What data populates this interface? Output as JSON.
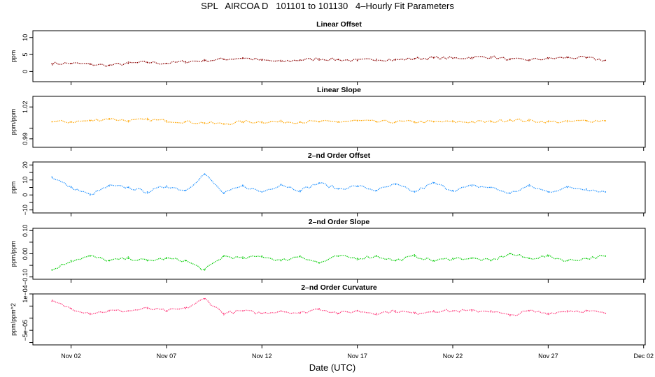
{
  "title": "SPL   AIRCOA D   101101 to 101130   4–Hourly Fit Parameters",
  "x_axis": {
    "label": "Date (UTC)",
    "range": [
      "2010-10-31T00:00",
      "2010-12-02T02:00"
    ],
    "ticks": [
      {
        "date": "2010-11-02",
        "label": "Nov 02"
      },
      {
        "date": "2010-11-07",
        "label": "Nov 07"
      },
      {
        "date": "2010-11-12",
        "label": "Nov 12"
      },
      {
        "date": "2010-11-17",
        "label": "Nov 17"
      },
      {
        "date": "2010-11-22",
        "label": "Nov 22"
      },
      {
        "date": "2010-11-27",
        "label": "Nov 27"
      },
      {
        "date": "2010-12-02",
        "label": "Dec 02"
      }
    ]
  },
  "chart_data": [
    {
      "type": "line",
      "line_style": "dotted",
      "title": "Linear Offset",
      "ylabel": "ppm",
      "color": "#8b0000",
      "ylim": [
        -3,
        12
      ],
      "yticks": [
        0,
        5,
        10
      ],
      "ytick_labels": [
        "0",
        "5",
        "10"
      ],
      "x": [
        "2010-11-01",
        "2010-11-02",
        "2010-11-03",
        "2010-11-04",
        "2010-11-05",
        "2010-11-06",
        "2010-11-07",
        "2010-11-08",
        "2010-11-09",
        "2010-11-10",
        "2010-11-11",
        "2010-11-12",
        "2010-11-13",
        "2010-11-14",
        "2010-11-15",
        "2010-11-16",
        "2010-11-17",
        "2010-11-18",
        "2010-11-19",
        "2010-11-20",
        "2010-11-21",
        "2010-11-22",
        "2010-11-23",
        "2010-11-24",
        "2010-11-25",
        "2010-11-26",
        "2010-11-27",
        "2010-11-28",
        "2010-11-29",
        "2010-11-30"
      ],
      "values": [
        2.3,
        2.4,
        2.1,
        1.8,
        2.4,
        2.7,
        2.4,
        2.9,
        3.2,
        3.6,
        4.0,
        3.3,
        2.9,
        3.4,
        3.7,
        3.5,
        3.2,
        3.6,
        3.4,
        3.8,
        4.0,
        3.9,
        4.1,
        4.3,
        3.5,
        3.4,
        3.8,
        4.1,
        4.0,
        3.3
      ]
    },
    {
      "type": "line",
      "line_style": "dotted",
      "title": "Linear Slope",
      "ylabel": "ppm/ppm",
      "color": "#ffa500",
      "ylim": [
        0.982,
        1.03
      ],
      "yticks": [
        0.99,
        1.0,
        1.02
      ],
      "ytick_labels": [
        "0.99",
        "",
        "1.02"
      ],
      "x": [
        "2010-11-01",
        "2010-11-02",
        "2010-11-03",
        "2010-11-04",
        "2010-11-05",
        "2010-11-06",
        "2010-11-07",
        "2010-11-08",
        "2010-11-09",
        "2010-11-10",
        "2010-11-11",
        "2010-11-12",
        "2010-11-13",
        "2010-11-14",
        "2010-11-15",
        "2010-11-16",
        "2010-11-17",
        "2010-11-18",
        "2010-11-19",
        "2010-11-20",
        "2010-11-21",
        "2010-11-22",
        "2010-11-23",
        "2010-11-24",
        "2010-11-25",
        "2010-11-26",
        "2010-11-27",
        "2010-11-28",
        "2010-11-29",
        "2010-11-30"
      ],
      "values": [
        1.006,
        1.006,
        1.007,
        1.009,
        1.007,
        1.008,
        1.007,
        1.006,
        1.005,
        1.004,
        1.006,
        1.006,
        1.006,
        1.006,
        1.006,
        1.006,
        1.007,
        1.006,
        1.006,
        1.006,
        1.006,
        1.006,
        1.006,
        1.006,
        1.008,
        1.007,
        1.006,
        1.006,
        1.007,
        1.007
      ]
    },
    {
      "type": "line",
      "line_style": "dotted",
      "title": "2–nd Order Offset",
      "ylabel": "ppm",
      "color": "#1e90ff",
      "ylim": [
        -12,
        22
      ],
      "yticks": [
        -10,
        -5,
        0,
        5,
        10,
        15,
        20
      ],
      "ytick_labels": [
        "−10",
        "",
        "0",
        "",
        "10",
        "",
        "20"
      ],
      "x": [
        "2010-11-01",
        "2010-11-02",
        "2010-11-03",
        "2010-11-04",
        "2010-11-05",
        "2010-11-06",
        "2010-11-07",
        "2010-11-08",
        "2010-11-09",
        "2010-11-10",
        "2010-11-11",
        "2010-11-12",
        "2010-11-13",
        "2010-11-14",
        "2010-11-15",
        "2010-11-16",
        "2010-11-17",
        "2010-11-18",
        "2010-11-19",
        "2010-11-20",
        "2010-11-21",
        "2010-11-22",
        "2010-11-23",
        "2010-11-24",
        "2010-11-25",
        "2010-11-26",
        "2010-11-27",
        "2010-11-28",
        "2010-11-29",
        "2010-11-30"
      ],
      "values": [
        12,
        5,
        0,
        6,
        5,
        2,
        6,
        3,
        14,
        1,
        6,
        2,
        7,
        3,
        8,
        4,
        6,
        3,
        7,
        2,
        8,
        3,
        6,
        5,
        1,
        6,
        2,
        5,
        4,
        2
      ]
    },
    {
      "type": "line",
      "line_style": "dotted",
      "title": "2–nd Order Slope",
      "ylabel": "ppm/ppm",
      "color": "#00cc00",
      "ylim": [
        -0.11,
        0.11
      ],
      "yticks": [
        -0.1,
        -0.05,
        0.0,
        0.05,
        0.1
      ],
      "ytick_labels": [
        "−0.10",
        "",
        "0.00",
        "",
        "0.10"
      ],
      "x": [
        "2010-11-01",
        "2010-11-02",
        "2010-11-03",
        "2010-11-04",
        "2010-11-05",
        "2010-11-06",
        "2010-11-07",
        "2010-11-08",
        "2010-11-09",
        "2010-11-10",
        "2010-11-11",
        "2010-11-12",
        "2010-11-13",
        "2010-11-14",
        "2010-11-15",
        "2010-11-16",
        "2010-11-17",
        "2010-11-18",
        "2010-11-19",
        "2010-11-20",
        "2010-11-21",
        "2010-11-22",
        "2010-11-23",
        "2010-11-24",
        "2010-11-25",
        "2010-11-26",
        "2010-11-27",
        "2010-11-28",
        "2010-11-29",
        "2010-11-30"
      ],
      "values": [
        -0.07,
        -0.03,
        -0.01,
        -0.03,
        -0.02,
        -0.03,
        -0.02,
        -0.03,
        -0.07,
        -0.01,
        -0.02,
        -0.01,
        -0.03,
        -0.01,
        -0.04,
        -0.01,
        -0.02,
        -0.01,
        -0.03,
        -0.01,
        -0.03,
        -0.02,
        -0.02,
        -0.03,
        0.0,
        -0.02,
        -0.01,
        -0.03,
        -0.02,
        -0.01
      ]
    },
    {
      "type": "line",
      "line_style": "dotted",
      "title": "2–nd Order Curvature",
      "ylabel": "ppm/ppm^2",
      "color": "#ff3377",
      "ylim": [
        -0.00011,
        0.0001
      ],
      "yticks": [
        -0.0001,
        -5e-05,
        0.0,
        5e-05,
        0.0001
      ],
      "ytick_labels": [
        "",
        "−5e−05",
        "",
        "",
        "1e−04"
      ],
      "x": [
        "2010-11-01",
        "2010-11-02",
        "2010-11-03",
        "2010-11-04",
        "2010-11-05",
        "2010-11-06",
        "2010-11-07",
        "2010-11-08",
        "2010-11-09",
        "2010-11-10",
        "2010-11-11",
        "2010-11-12",
        "2010-11-13",
        "2010-11-14",
        "2010-11-15",
        "2010-11-16",
        "2010-11-17",
        "2010-11-18",
        "2010-11-19",
        "2010-11-20",
        "2010-11-21",
        "2010-11-22",
        "2010-11-23",
        "2010-11-24",
        "2010-11-25",
        "2010-11-26",
        "2010-11-27",
        "2010-11-28",
        "2010-11-29",
        "2010-11-30"
      ],
      "values": [
        7e-05,
        4e-05,
        2e-05,
        3e-05,
        3e-05,
        4e-05,
        3e-05,
        4e-05,
        8e-05,
        2e-05,
        3e-05,
        2e-05,
        3e-05,
        2e-05,
        4e-05,
        2e-05,
        3e-05,
        2e-05,
        3e-05,
        2e-05,
        3e-05,
        3e-05,
        3e-05,
        3e-05,
        1e-05,
        3e-05,
        2e-05,
        3e-05,
        3e-05,
        2e-05
      ]
    }
  ]
}
